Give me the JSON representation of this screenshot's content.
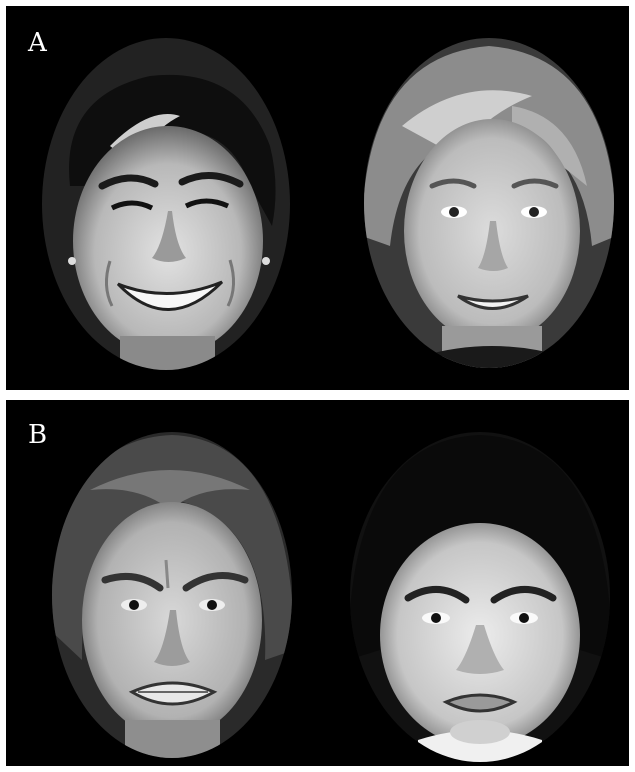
{
  "panels": [
    {
      "label": "A",
      "faces": [
        {
          "expression": "smiling",
          "skin": "#c9c9c9",
          "hair": "#1a1a1a"
        },
        {
          "expression": "smiling",
          "skin": "#cfcfcf",
          "hair": "#8a8a8a"
        }
      ]
    },
    {
      "label": "B",
      "faces": [
        {
          "expression": "disgusted",
          "skin": "#c4c4c4",
          "hair": "#4a4a4a"
        },
        {
          "expression": "angry-pout",
          "skin": "#d6d6d6",
          "hair": "#0d0d0d"
        }
      ]
    }
  ]
}
